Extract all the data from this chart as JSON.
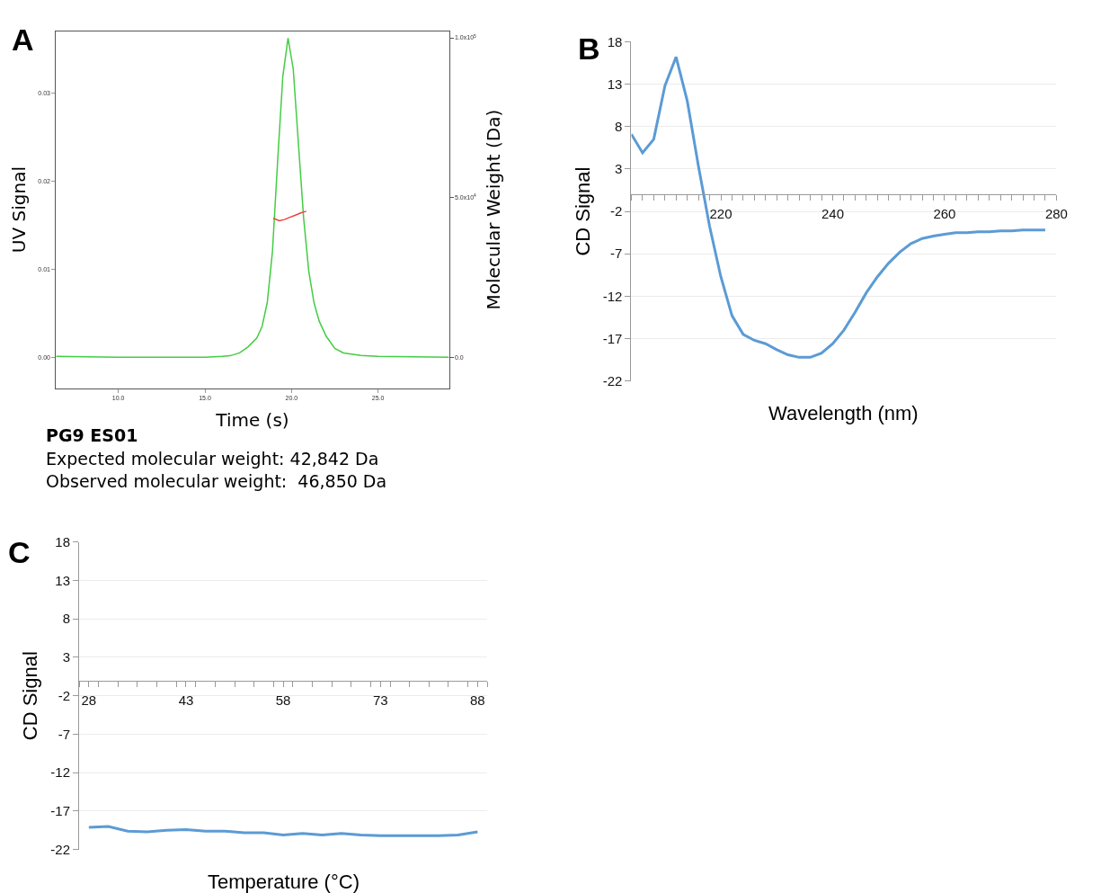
{
  "chart_data": [
    {
      "type": "line",
      "title": "A",
      "xlabel": "Time (s)",
      "ylabel": "UV Signal",
      "y2label": "Molecular Weight (Da)",
      "grid": false,
      "xlim": [
        6.4,
        29.1
      ],
      "ylim": [
        -0.0035,
        0.037
      ],
      "y2lim": [
        -9500,
        102100
      ],
      "xticks": [
        {
          "value": 10,
          "label": "10.0"
        },
        {
          "value": 15,
          "label": "15.0"
        },
        {
          "value": 20,
          "label": "20.0"
        },
        {
          "value": 25,
          "label": "25.0"
        }
      ],
      "yticks": [
        {
          "value": 0,
          "label": "0.00"
        },
        0.01,
        0.02,
        0.03
      ],
      "y2ticks": [
        {
          "value": 0,
          "label": "0.0"
        },
        {
          "value": 50000,
          "label": "5.0x10$^{4}$"
        },
        {
          "value": 100000,
          "label": "1.0x10$^{5}$"
        }
      ],
      "series": [
        {
          "color": "#44cc44",
          "x": [
            6.4,
            10,
            15,
            16,
            16.5,
            17,
            17.5,
            18,
            18.3,
            18.6,
            18.9,
            19.2,
            19.5,
            19.8,
            20.1,
            20.4,
            20.7,
            21.0,
            21.3,
            21.6,
            22.0,
            22.5,
            23,
            24,
            25,
            29.1
          ],
          "values": [
            0.0001,
            0.0,
            0.0,
            0.0001,
            0.0002,
            0.0005,
            0.0012,
            0.0022,
            0.0035,
            0.0062,
            0.012,
            0.0223,
            0.0319,
            0.0362,
            0.0327,
            0.0242,
            0.0158,
            0.0097,
            0.0062,
            0.0041,
            0.0024,
            0.001,
            0.0005,
            0.0002,
            0.0001,
            0.0
          ]
        },
        {
          "color": "#f04040",
          "axis": "y2",
          "x": [
            18.95,
            19.3,
            19.6,
            19.9,
            20.2,
            20.5,
            20.85
          ],
          "values": [
            43600,
            42800,
            43200,
            43900,
            44500,
            45200,
            45800
          ]
        }
      ],
      "annotations": [
        "PG9 ES01",
        "Expected molecular weight: 42,842 Da",
        "Observed molecular weight:  46,850 Da"
      ]
    },
    {
      "type": "line",
      "title": "B",
      "xlabel": "Wavelength (nm)",
      "ylabel": "CD Signal",
      "grid": "y",
      "xlim": [
        204,
        280
      ],
      "ylim": [
        -22,
        18
      ],
      "xticks": [
        {
          "value": 204,
          "label": null
        },
        {
          "value": 206,
          "label": null
        },
        {
          "value": 208,
          "label": null
        },
        {
          "value": 210,
          "label": null
        },
        {
          "value": 212,
          "label": null
        },
        {
          "value": 214,
          "label": null
        },
        {
          "value": 216,
          "label": null
        },
        {
          "value": 218,
          "label": null
        },
        220,
        {
          "value": 222,
          "label": null
        },
        {
          "value": 224,
          "label": null
        },
        {
          "value": 226,
          "label": null
        },
        {
          "value": 228,
          "label": null
        },
        {
          "value": 230,
          "label": null
        },
        {
          "value": 232,
          "label": null
        },
        {
          "value": 234,
          "label": null
        },
        {
          "value": 236,
          "label": null
        },
        {
          "value": 238,
          "label": null
        },
        240,
        {
          "value": 242,
          "label": null
        },
        {
          "value": 244,
          "label": null
        },
        {
          "value": 246,
          "label": null
        },
        {
          "value": 248,
          "label": null
        },
        {
          "value": 250,
          "label": null
        },
        {
          "value": 252,
          "label": null
        },
        {
          "value": 254,
          "label": null
        },
        {
          "value": 256,
          "label": null
        },
        {
          "value": 258,
          "label": null
        },
        260,
        {
          "value": 262,
          "label": null
        },
        {
          "value": 264,
          "label": null
        },
        {
          "value": 266,
          "label": null
        },
        {
          "value": 268,
          "label": null
        },
        {
          "value": 270,
          "label": null
        },
        {
          "value": 272,
          "label": null
        },
        {
          "value": 274,
          "label": null
        },
        {
          "value": 276,
          "label": null
        },
        {
          "value": 278,
          "label": null
        },
        280
      ],
      "yticks": [
        -22,
        -17,
        -12,
        -7,
        -2,
        3,
        8,
        13,
        18
      ],
      "series": [
        {
          "color": "#5b9bd5",
          "x": [
            204,
            206,
            208,
            210,
            212,
            214,
            216,
            218,
            220,
            222,
            224,
            226,
            228,
            230,
            232,
            234,
            236,
            238,
            240,
            242,
            244,
            246,
            248,
            250,
            252,
            254,
            256,
            258,
            260,
            262,
            264,
            266,
            268,
            270,
            272,
            274,
            276,
            278
          ],
          "values": [
            7.1,
            4.9,
            6.5,
            12.8,
            16.2,
            11.0,
            3.3,
            -3.8,
            -9.7,
            -14.3,
            -16.5,
            -17.2,
            -17.6,
            -18.3,
            -18.9,
            -19.2,
            -19.2,
            -18.7,
            -17.6,
            -16.0,
            -13.9,
            -11.6,
            -9.7,
            -8.1,
            -6.8,
            -5.8,
            -5.2,
            -4.9,
            -4.7,
            -4.5,
            -4.5,
            -4.4,
            -4.4,
            -4.3,
            -4.3,
            -4.2,
            -4.2,
            -4.2
          ]
        }
      ]
    },
    {
      "type": "line",
      "title": "C",
      "xlabel": "Temperature (°C)",
      "ylabel": "CD Signal",
      "grid": "y",
      "xlim": [
        26.5,
        89.5
      ],
      "ylim": [
        -22,
        18
      ],
      "xticks": [
        {
          "value": 26.5,
          "label": null
        },
        28,
        {
          "value": 29.5,
          "label": null
        },
        {
          "value": 32.5,
          "label": null
        },
        {
          "value": 35.5,
          "label": null
        },
        {
          "value": 38.5,
          "label": null
        },
        {
          "value": 41.5,
          "label": null
        },
        43,
        {
          "value": 44.5,
          "label": null
        },
        {
          "value": 47.5,
          "label": null
        },
        {
          "value": 50.5,
          "label": null
        },
        {
          "value": 53.5,
          "label": null
        },
        {
          "value": 56.5,
          "label": null
        },
        58,
        {
          "value": 59.5,
          "label": null
        },
        {
          "value": 62.5,
          "label": null
        },
        {
          "value": 65.5,
          "label": null
        },
        {
          "value": 68.5,
          "label": null
        },
        {
          "value": 71.5,
          "label": null
        },
        73,
        {
          "value": 74.5,
          "label": null
        },
        {
          "value": 77.5,
          "label": null
        },
        {
          "value": 80.5,
          "label": null
        },
        {
          "value": 83.5,
          "label": null
        },
        {
          "value": 86.5,
          "label": null
        },
        88,
        {
          "value": 89.5,
          "label": null
        }
      ],
      "yticks": [
        -22,
        -17,
        -12,
        -7,
        -2,
        3,
        8,
        13,
        18
      ],
      "series": [
        {
          "color": "#5b9bd5",
          "x": [
            28,
            31,
            34,
            37,
            40,
            43,
            46,
            49,
            52,
            55,
            58,
            61,
            64,
            67,
            70,
            73,
            76,
            79,
            82,
            85,
            88
          ],
          "values": [
            -19.1,
            -19.0,
            -19.6,
            -19.7,
            -19.5,
            -19.4,
            -19.6,
            -19.6,
            -19.8,
            -19.8,
            -20.1,
            -19.9,
            -20.1,
            -19.9,
            -20.1,
            -20.2,
            -20.2,
            -20.2,
            -20.2,
            -20.1,
            -19.7
          ]
        }
      ]
    }
  ]
}
